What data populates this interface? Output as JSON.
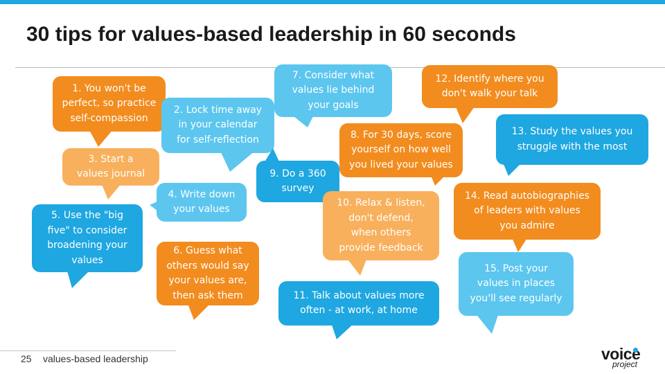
{
  "slide": {
    "title": "30 tips for values-based leadership in 60 seconds",
    "page_number": "25",
    "footer_text": "values-based leadership",
    "logo_top": "voice",
    "logo_bottom": "project"
  },
  "colors": {
    "orange": "#f28c1e",
    "blue": "#1ea7e1",
    "light_blue": "#5cc6ef",
    "peach": "#f8b05c"
  },
  "tips": [
    {
      "id": 1,
      "text": "1. You won't be\nperfect, so practice\nself-compassion",
      "color": "orange"
    },
    {
      "id": 2,
      "text": "2. Lock time away\nin your calendar\nfor self-reflection",
      "color": "light_blue"
    },
    {
      "id": 3,
      "text": "3. Start a\nvalues journal",
      "color": "peach"
    },
    {
      "id": 4,
      "text": "4. Write down\nyour values",
      "color": "light_blue"
    },
    {
      "id": 5,
      "text": "5. Use the \"big\nfive\" to consider\nbroadening your\nvalues",
      "color": "blue"
    },
    {
      "id": 6,
      "text": "6. Guess what\nothers would say\nyour values are,\nthen ask them",
      "color": "orange"
    },
    {
      "id": 7,
      "text": "7. Consider what\nvalues lie behind\nyour goals",
      "color": "light_blue"
    },
    {
      "id": 8,
      "text": "8. For 30 days, score\nyourself on how well\nyou lived your values",
      "color": "orange"
    },
    {
      "id": 9,
      "text": "9. Do a 360\nsurvey",
      "color": "blue"
    },
    {
      "id": 10,
      "text": "10. Relax & listen,\ndon't defend,\nwhen others\nprovide feedback",
      "color": "peach"
    },
    {
      "id": 11,
      "text": "11. Talk about values more\noften - at work, at home",
      "color": "blue"
    },
    {
      "id": 12,
      "text": "12. Identify where you\ndon't walk your talk",
      "color": "orange"
    },
    {
      "id": 13,
      "text": "13. Study the values you\nstruggle with the most",
      "color": "blue"
    },
    {
      "id": 14,
      "text": "14. Read autobiographies\nof leaders with values\nyou admire",
      "color": "orange"
    },
    {
      "id": 15,
      "text": "15. Post your\nvalues in places\nyou'll see regularly",
      "color": "light_blue"
    }
  ]
}
